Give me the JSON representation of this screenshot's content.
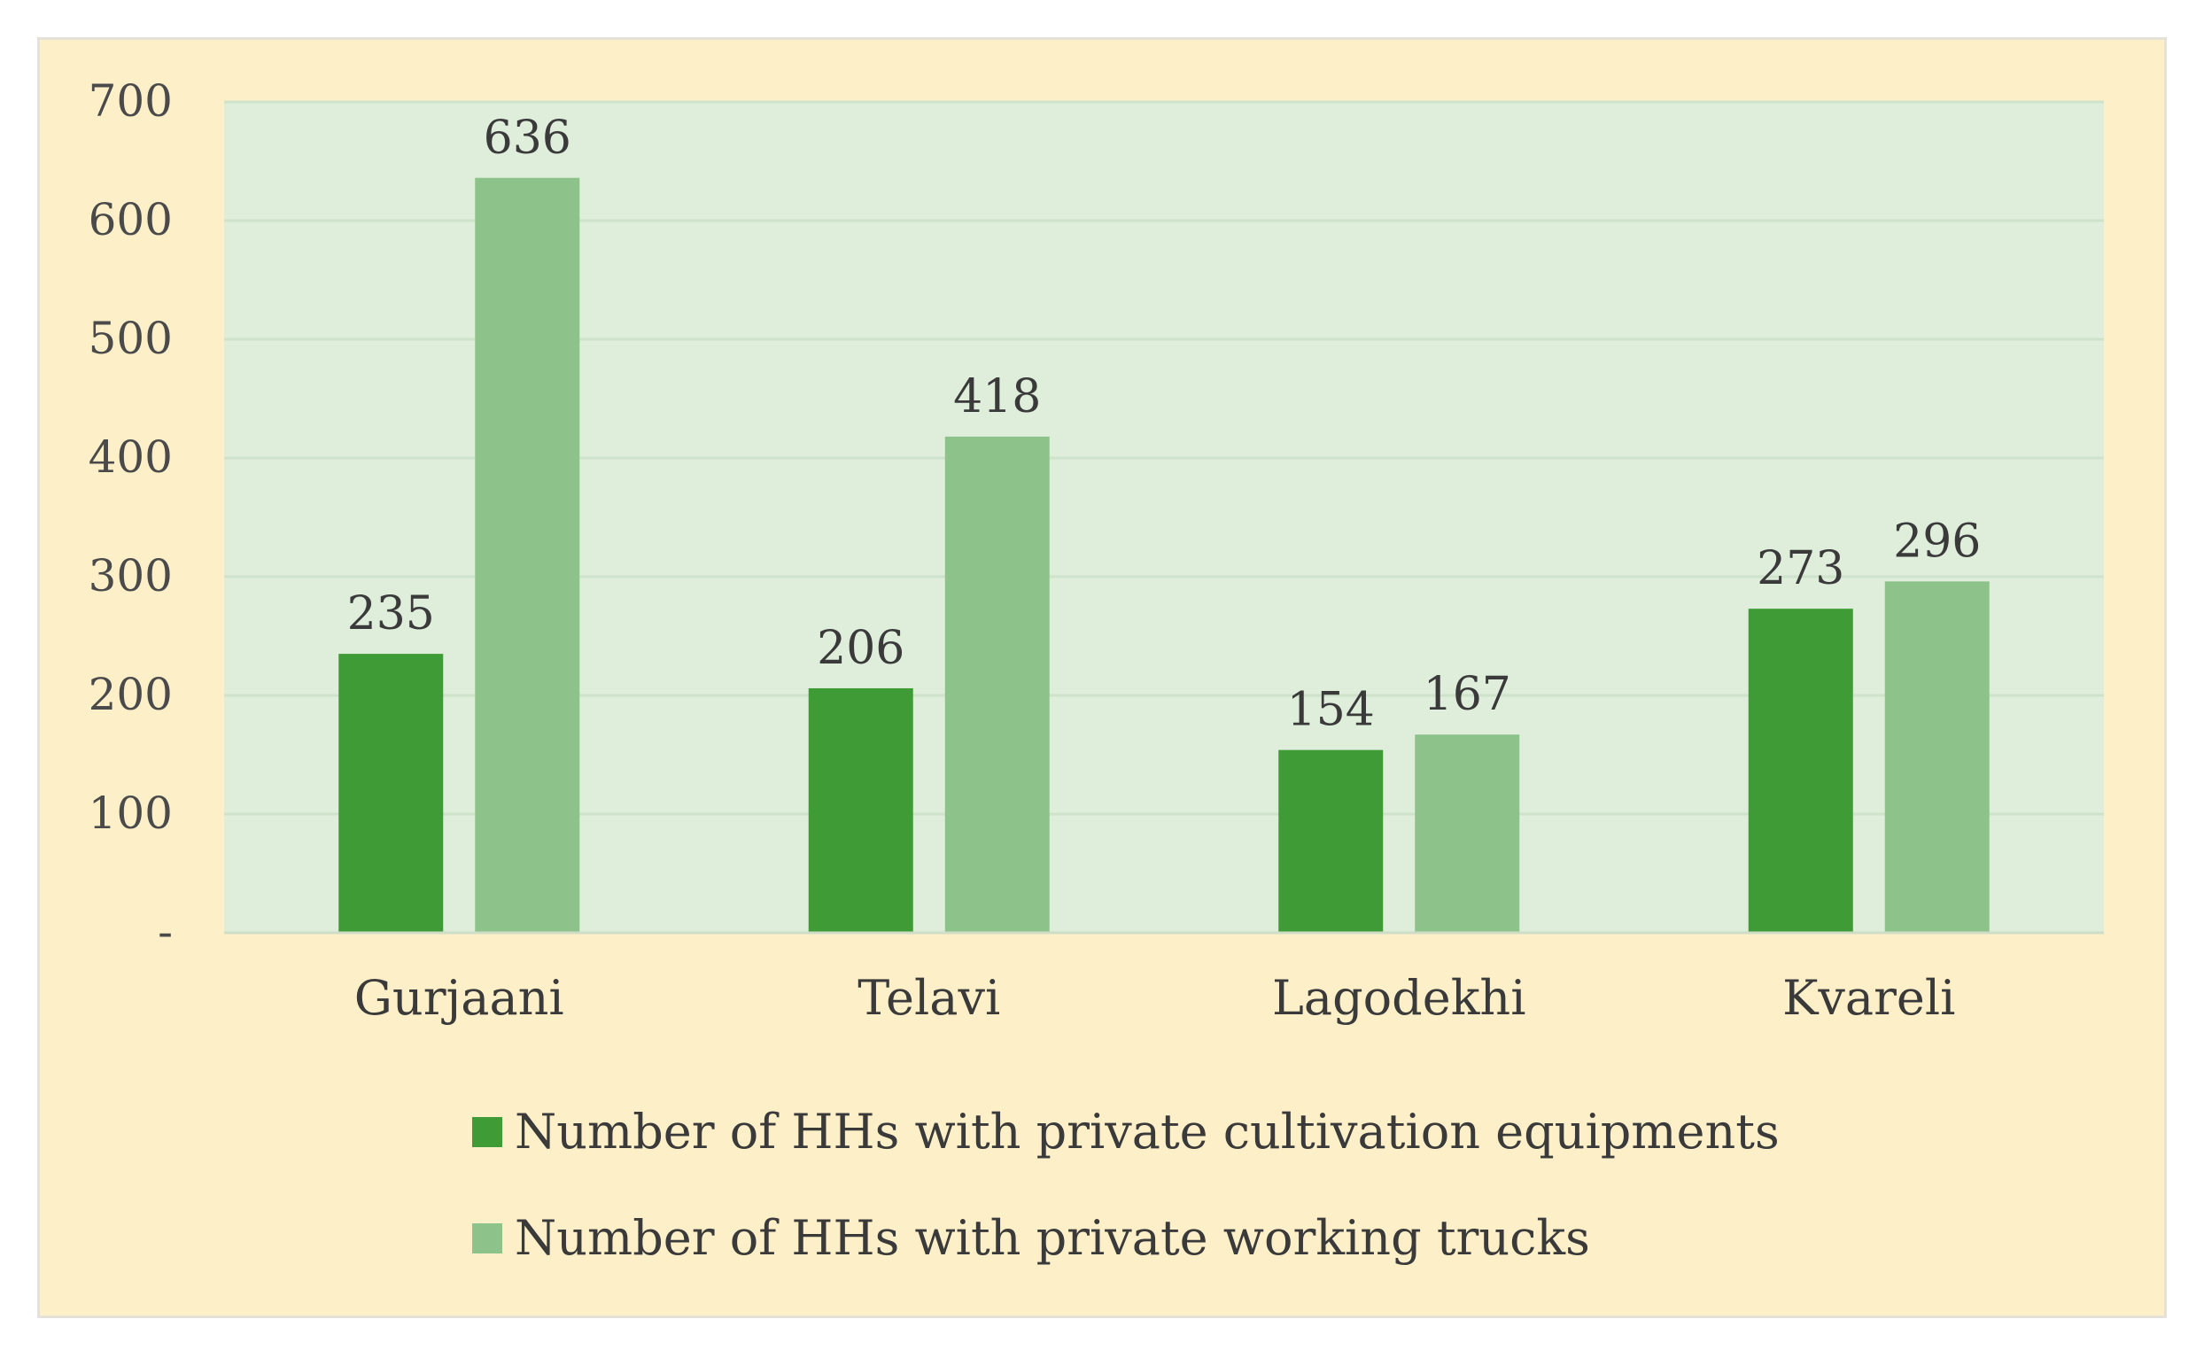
{
  "chart_data": {
    "type": "bar",
    "title": "",
    "xlabel": "",
    "ylabel": "",
    "ylim": [
      0,
      700
    ],
    "yticks": [
      0,
      100,
      200,
      300,
      400,
      500,
      600,
      700
    ],
    "ytick_labels": [
      "-",
      "100",
      "200",
      "300",
      "400",
      "500",
      "600",
      "700"
    ],
    "categories": [
      "Gurjaani",
      "Telavi",
      "Lagodekhi",
      "Kvareli"
    ],
    "series": [
      {
        "name": "Number of HHs with private cultivation equipments",
        "values": [
          235,
          206,
          154,
          273
        ],
        "color": "#3e9b35"
      },
      {
        "name": "Number of HHs with private working trucks",
        "values": [
          636,
          418,
          167,
          296
        ],
        "color": "#8dc38a"
      }
    ],
    "grid": true,
    "legend_position": "bottom",
    "colors": {
      "outer_background": "#fdf0c9",
      "plot_background": "#deeedb",
      "gridline": "#cfe3cb",
      "axis_line": "#cfdcc6"
    }
  }
}
